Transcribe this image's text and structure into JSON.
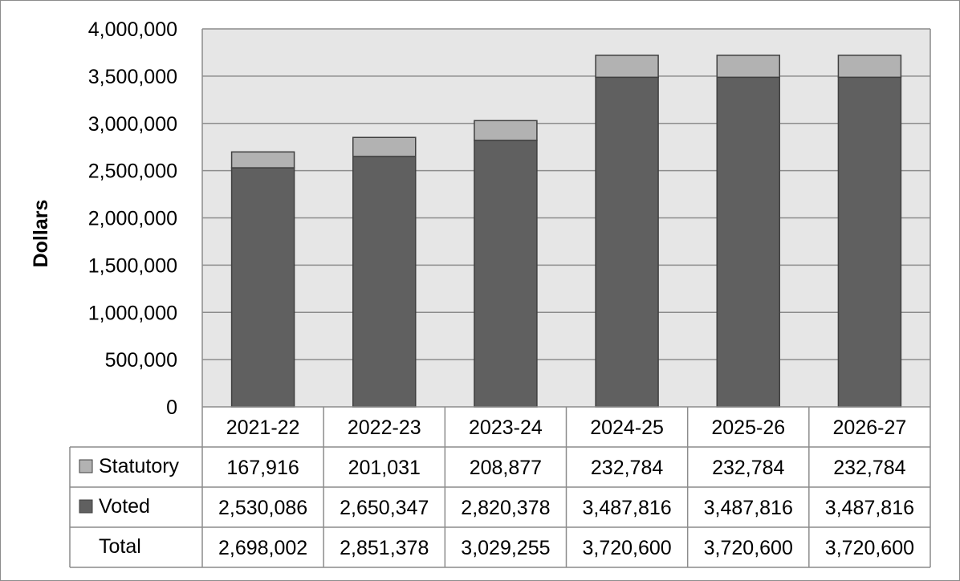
{
  "chart_data": {
    "type": "bar",
    "stacked": true,
    "categories": [
      "2021-22",
      "2022-23",
      "2023-24",
      "2024-25",
      "2025-26",
      "2026-27"
    ],
    "series": [
      {
        "name": "Voted",
        "values": [
          2530086,
          2650347,
          2820378,
          3487816,
          3487816,
          3487816
        ],
        "color": "#606060",
        "labels": [
          "2,530,086",
          "2,650,347",
          "2,820,378",
          "3,487,816",
          "3,487,816",
          "3,487,816"
        ]
      },
      {
        "name": "Statutory",
        "values": [
          167916,
          201031,
          208877,
          232784,
          232784,
          232784
        ],
        "color": "#b2b2b2",
        "labels": [
          "167,916",
          "201,031",
          "208,877",
          "232,784",
          "232,784",
          "232,784"
        ]
      }
    ],
    "totals": {
      "name": "Total",
      "values": [
        2698002,
        2851378,
        3029255,
        3720600,
        3720600,
        3720600
      ],
      "labels": [
        "2,698,002",
        "2,851,378",
        "3,029,255",
        "3,720,600",
        "3,720,600",
        "3,720,600"
      ]
    },
    "ylabel": "Dollars",
    "ylim": [
      0,
      4000000
    ],
    "yticks": [
      0,
      500000,
      1000000,
      1500000,
      2000000,
      2500000,
      3000000,
      3500000,
      4000000
    ],
    "ytick_labels": [
      "0",
      "500,000",
      "1,000,000",
      "1,500,000",
      "2,000,000",
      "2,500,000",
      "3,000,000",
      "3,500,000",
      "4,000,000"
    ],
    "grid": true,
    "plot_background": "#e6e6e6",
    "legend": "data table below plot"
  }
}
